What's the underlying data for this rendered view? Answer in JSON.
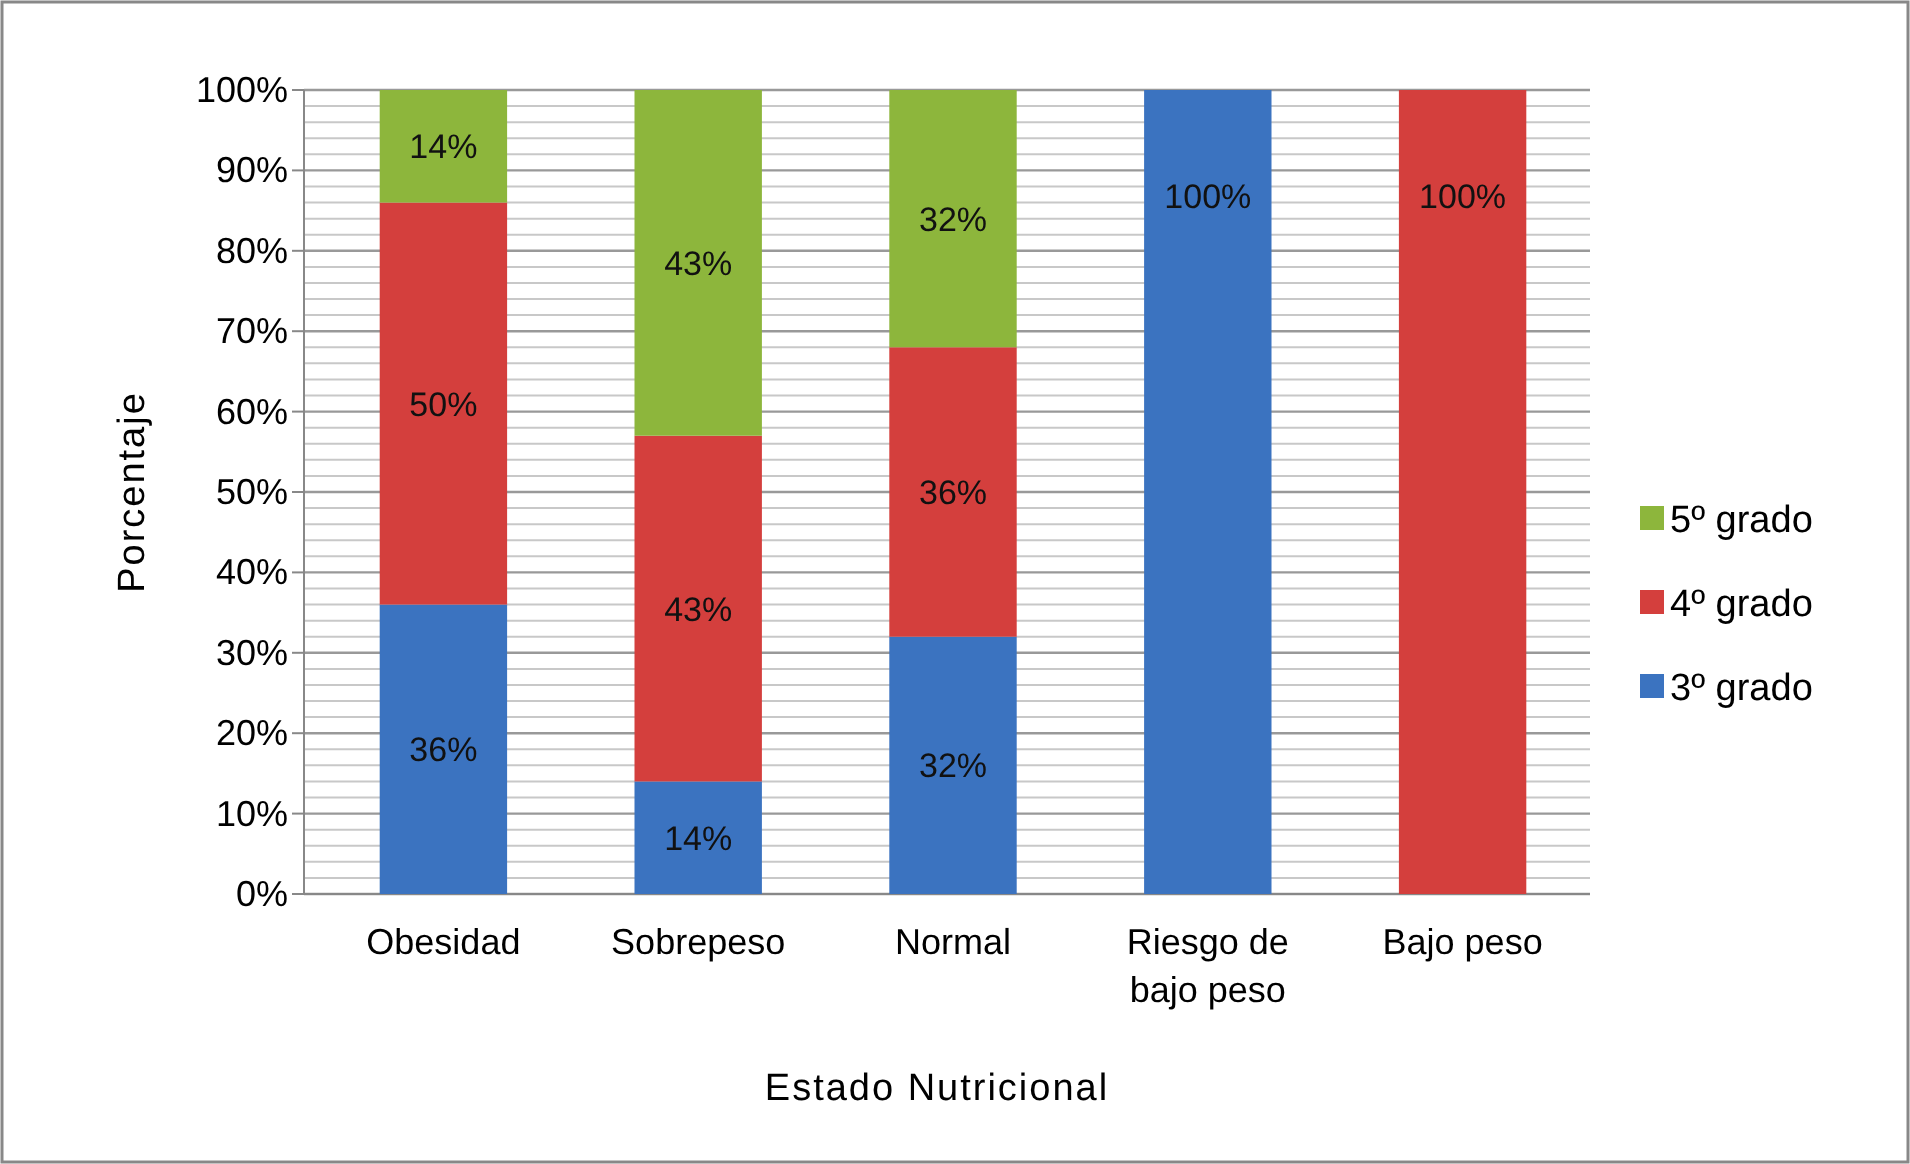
{
  "chart_data": {
    "type": "bar",
    "stacked": true,
    "xlabel": "Estado Nutricional",
    "ylabel": "Porcentaje",
    "categories": [
      "Obesidad",
      "Sobrepeso",
      "Normal",
      "Riesgo de bajo peso",
      "Bajo peso"
    ],
    "series": [
      {
        "name": "3º grado",
        "color": "#3b73c0",
        "values": [
          36,
          14,
          32,
          100,
          0
        ],
        "value_labels": [
          "36%",
          "14%",
          "32%",
          "100%",
          null
        ]
      },
      {
        "name": "4º grado",
        "color": "#d43f3d",
        "values": [
          50,
          43,
          36,
          0,
          100
        ],
        "value_labels": [
          "50%",
          "43%",
          "36%",
          null,
          "100%"
        ]
      },
      {
        "name": "5º grado",
        "color": "#8db63c",
        "values": [
          14,
          43,
          32,
          0,
          0
        ],
        "value_labels": [
          "14%",
          "43%",
          "32%",
          null,
          null
        ]
      }
    ],
    "ylim": [
      0,
      100
    ],
    "yticks": [
      {
        "value": 0,
        "label": "0%"
      },
      {
        "value": 10,
        "label": "10%"
      },
      {
        "value": 20,
        "label": "20%"
      },
      {
        "value": 30,
        "label": "30%"
      },
      {
        "value": 40,
        "label": "40%"
      },
      {
        "value": 50,
        "label": "50%"
      },
      {
        "value": 60,
        "label": "60%"
      },
      {
        "value": 70,
        "label": "70%"
      },
      {
        "value": 80,
        "label": "80%"
      },
      {
        "value": 90,
        "label": "90%"
      },
      {
        "value": 100,
        "label": "100%"
      }
    ],
    "grid": true,
    "legend": "right"
  }
}
